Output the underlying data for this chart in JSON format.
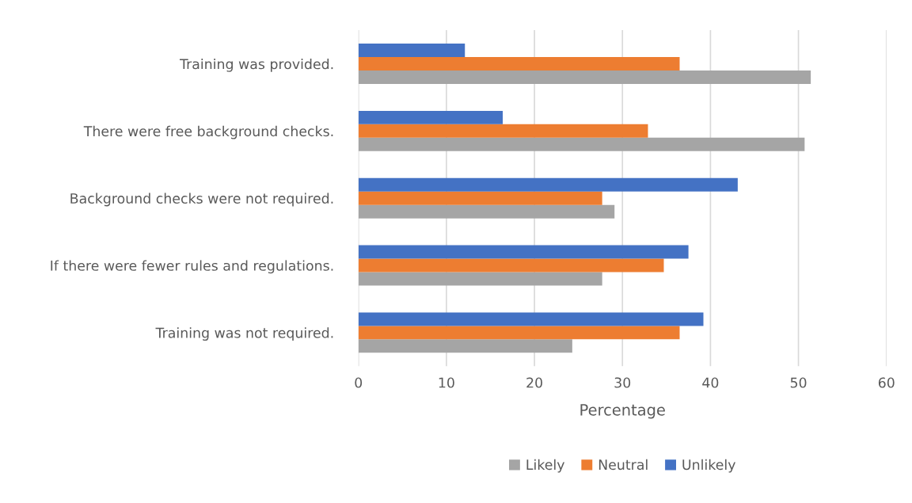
{
  "chart_data": {
    "type": "bar",
    "orientation": "horizontal",
    "xlabel": "Percentage",
    "categories": [
      "Training was provided.",
      "There were free background checks.",
      "Background checks were not required.",
      "If there were fewer rules and regulations.",
      "Training was not required."
    ],
    "series": [
      {
        "name": "Likely",
        "color": "#a5a5a5",
        "values": [
          51.4,
          50.7,
          29.1,
          27.7,
          24.3
        ]
      },
      {
        "name": "Neutral",
        "color": "#ed7d31",
        "values": [
          36.5,
          32.9,
          27.7,
          34.7,
          36.5
        ]
      },
      {
        "name": "Unlikely",
        "color": "#4472c4",
        "values": [
          12.1,
          16.4,
          43.1,
          37.5,
          39.2
        ]
      }
    ],
    "xlim": [
      0,
      60
    ],
    "xticks": [
      0,
      10,
      20,
      30,
      40,
      50,
      60
    ],
    "grid": "x",
    "legend": "bottom"
  }
}
